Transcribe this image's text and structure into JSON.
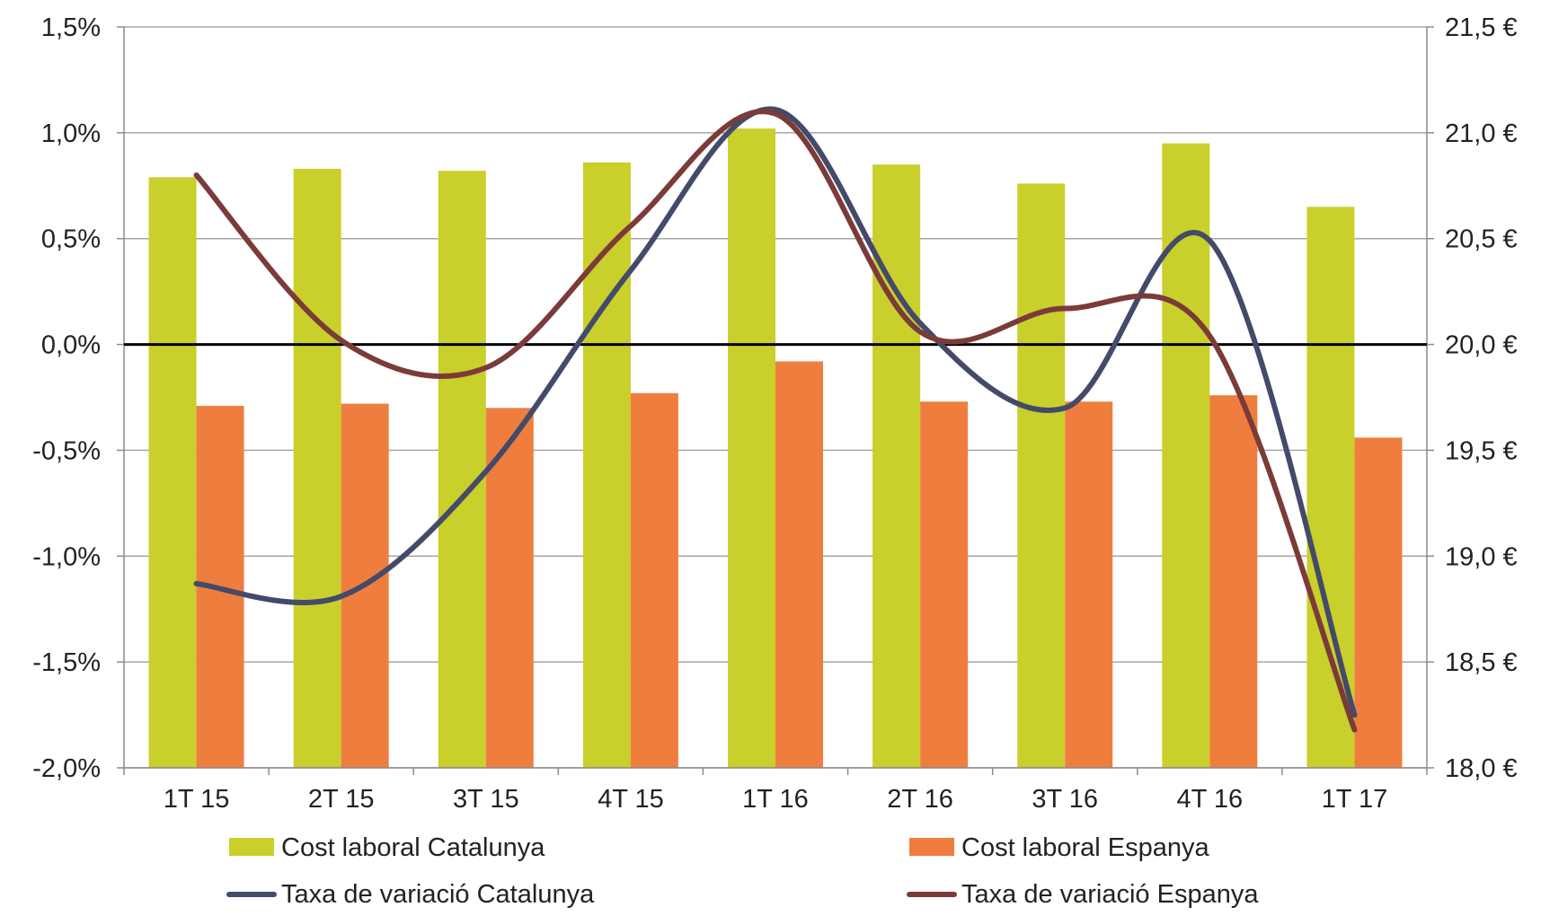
{
  "chart_data": {
    "type": "bar",
    "title": "",
    "xlabel": "",
    "ylabel": "",
    "categories": [
      "1T 15",
      "2T 15",
      "3T 15",
      "4T 15",
      "1T 16",
      "2T 16",
      "3T 16",
      "4T 16",
      "1T 17"
    ],
    "left_axis": {
      "range": [
        -2.0,
        1.5
      ],
      "ticks": [
        1.5,
        1.0,
        0.5,
        0.0,
        -0.5,
        -1.0,
        -1.5,
        -2.0
      ],
      "tick_labels": [
        "1,5%",
        "1,0%",
        "0,5%",
        "0,0%",
        "-0,5%",
        "-1,0%",
        "-1,5%",
        "-2,0%"
      ]
    },
    "right_axis": {
      "range": [
        18.0,
        21.5
      ],
      "ticks": [
        21.5,
        21.0,
        20.5,
        20.0,
        19.5,
        19.0,
        18.5,
        18.0
      ],
      "tick_labels": [
        "21,5 €",
        "21,0 €",
        "20,5 €",
        "20,0 €",
        "19,5 €",
        "19,0 €",
        "18,5 €",
        "18,0 €"
      ]
    },
    "bar_series": [
      {
        "name": "Cost laboral Catalunya",
        "color": "#c9cf2b",
        "axis": "right",
        "values": [
          20.79,
          20.83,
          20.82,
          20.86,
          21.02,
          20.85,
          20.76,
          20.95,
          20.65
        ]
      },
      {
        "name": "Cost laboral Espanya",
        "color": "#ef7e3e",
        "axis": "right",
        "values": [
          19.71,
          19.72,
          19.7,
          19.77,
          19.92,
          19.73,
          19.73,
          19.76,
          19.56
        ]
      }
    ],
    "line_series": [
      {
        "name": "Taxa de variació Catalunya",
        "color": "#434a6a",
        "axis": "left",
        "values": [
          -1.13,
          -1.19,
          -0.6,
          0.35,
          1.11,
          0.1,
          -0.3,
          0.49,
          -1.75
        ]
      },
      {
        "name": "Taxa de variació Espanya",
        "color": "#7b3b38",
        "axis": "left",
        "values": [
          0.8,
          0.02,
          -0.11,
          0.56,
          1.09,
          0.06,
          0.17,
          0.04,
          -1.82
        ]
      }
    ],
    "zero_line": true,
    "grid": true,
    "legend_position": "bottom"
  }
}
